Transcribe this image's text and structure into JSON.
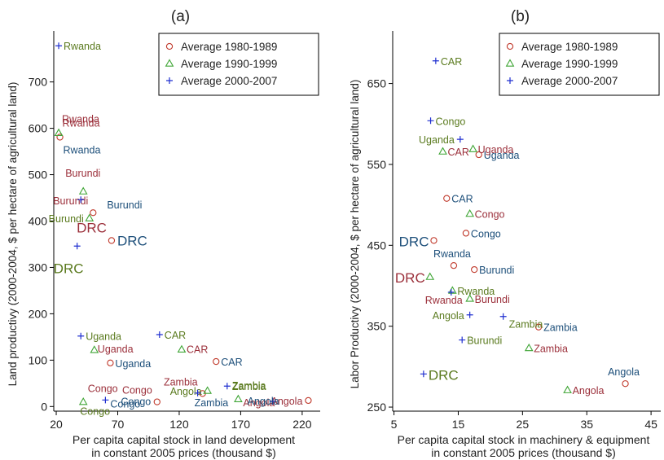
{
  "colors": {
    "s1980": "#c0392b",
    "s1990": "#3fa535",
    "s2000": "#1f2fd0",
    "lbl1980": "#9b2f3a",
    "lbl1990": "#5a7a1e",
    "lbl2000": "#1d4f7a",
    "axis": "#000000",
    "text": "#222222"
  },
  "chart_data": [
    {
      "type": "scatter",
      "title": "(a)",
      "xlabel": [
        "Per capita capital stock in land development",
        "in constant 2005 prices (thousand $)"
      ],
      "ylabel": "Land productivy (2000-2004, $ per hectare of agricultural land)",
      "xlim": [
        18,
        232
      ],
      "ylim": [
        -10,
        810
      ],
      "xticks": [
        20,
        70,
        120,
        170,
        220
      ],
      "yticks": [
        0,
        100,
        200,
        300,
        400,
        500,
        600,
        700
      ],
      "legend": {
        "position": "top-right",
        "entries": [
          {
            "series": "s1980",
            "label": "Average 1980-1989"
          },
          {
            "series": "s1990",
            "label": "Average 1990-1999"
          },
          {
            "series": "s2000",
            "label": "Average 2000-2007"
          }
        ]
      },
      "series": [
        {
          "name": "Average 1980-1989",
          "key": "s1980",
          "marker": "circle",
          "points": [
            {
              "x": 23,
              "y": 581,
              "label": "Rwanda",
              "anchor": "right-top"
            },
            {
              "x": 50,
              "y": 418,
              "label": "Burundi",
              "anchor": "above-left"
            },
            {
              "x": 65,
              "y": 358,
              "label": "DRC",
              "anchor": "above-left-big"
            },
            {
              "x": 64,
              "y": 94,
              "label": "Uganda",
              "anchor": "right"
            },
            {
              "x": 150,
              "y": 97,
              "label": "CAR",
              "anchor": "right"
            },
            {
              "x": 102,
              "y": 10,
              "label": "Congo",
              "anchor": "above-left"
            },
            {
              "x": 139,
              "y": 28,
              "label": "Zambia",
              "anchor": "above-left"
            },
            {
              "x": 225,
              "y": 13,
              "label": "Angola",
              "anchor": "left"
            }
          ]
        },
        {
          "name": "Average 1990-1999",
          "key": "s1990",
          "marker": "triangle",
          "points": [
            {
              "x": 22,
              "y": 590,
              "label": "",
              "anchor": "none"
            },
            {
              "x": 42,
              "y": 464,
              "label": "",
              "anchor": "none"
            },
            {
              "x": 47,
              "y": 406,
              "label": "Burundi",
              "anchor": "left"
            },
            {
              "x": 51,
              "y": 122,
              "label": "",
              "anchor": "none"
            },
            {
              "x": 122,
              "y": 123,
              "label": "",
              "anchor": "none"
            },
            {
              "x": 143,
              "y": 34,
              "label": "Angola",
              "anchor": "left"
            },
            {
              "x": 168,
              "y": 16,
              "label": "Angola",
              "anchor": "right-low"
            },
            {
              "x": 42,
              "y": 10,
              "label": "Congo",
              "anchor": "below-right"
            }
          ]
        },
        {
          "name": "Average 2000-2007",
          "key": "s2000",
          "marker": "plus",
          "points": [
            {
              "x": 22,
              "y": 778,
              "label": "Rwanda",
              "anchor": "right-g"
            },
            {
              "x": 40,
              "y": 446,
              "label": "",
              "anchor": "none"
            },
            {
              "x": 37,
              "y": 346,
              "label": "DRC",
              "anchor": "below-big"
            },
            {
              "x": 40,
              "y": 152,
              "label": "Uganda",
              "anchor": "right-g"
            },
            {
              "x": 104,
              "y": 155,
              "label": "CAR",
              "anchor": "right-g"
            },
            {
              "x": 60,
              "y": 14,
              "label": "Congo",
              "anchor": "right-low"
            },
            {
              "x": 135,
              "y": 29,
              "label": "Zambia",
              "anchor": "below-right"
            },
            {
              "x": 159,
              "y": 44,
              "label": "Zambia",
              "anchor": "right-g"
            },
            {
              "x": 196,
              "y": 11,
              "label": "",
              "anchor": "none"
            }
          ]
        }
      ],
      "extra_labels": [
        {
          "x": 23,
          "y": 581,
          "text": "Rwanda",
          "color": "lbl2000",
          "dx": 4,
          "dy": 20
        },
        {
          "x": 56,
          "y": 406,
          "text": "Burundi",
          "color": "lbl2000",
          "dx": 8,
          "dy": -12
        },
        {
          "x": 65,
          "y": 358,
          "text": "DRC",
          "color": "lbl2000",
          "dx": 7,
          "dy": 6,
          "big": true
        },
        {
          "x": 51,
          "y": 122,
          "text": "Uganda",
          "color": "lbl1980",
          "dx": 4,
          "dy": 3
        },
        {
          "x": 122,
          "y": 123,
          "text": "CAR",
          "color": "lbl1980",
          "dx": 6,
          "dy": 4
        },
        {
          "x": 22,
          "y": 590,
          "text": "Rwanda",
          "color": "lbl1980",
          "dx": 4,
          "dy": -13
        },
        {
          "x": 42,
          "y": 464,
          "text": "Burundi",
          "color": "lbl1980",
          "dx": -22,
          "dy": -18
        },
        {
          "x": 60,
          "y": 14,
          "text": "Congo",
          "color": "lbl2000",
          "dx": 19,
          "dy": 6
        },
        {
          "x": 102,
          "y": 10,
          "text": "Congo",
          "color": "lbl1980",
          "dx": -85,
          "dy": -12
        },
        {
          "x": 196,
          "y": 11,
          "text": "Angola",
          "color": "lbl2000",
          "dx": -31,
          "dy": 4
        },
        {
          "x": 159,
          "y": 44,
          "text": "Zambia",
          "color": "lbl1990",
          "dx": 6,
          "dy": 4
        }
      ]
    },
    {
      "type": "scatter",
      "title": "(b)",
      "xlabel": [
        "Per capita capital stock in machinery & equipment",
        "in constant 2005 prices (thousand $)"
      ],
      "ylabel": "Labor Productivy (2000-2004, $ per hectare of agricultural land)",
      "xlim": [
        4.8,
        46
      ],
      "ylim": [
        245,
        715
      ],
      "xticks": [
        5,
        15,
        25,
        35,
        45
      ],
      "yticks": [
        250,
        350,
        450,
        550,
        650
      ],
      "legend": {
        "position": "top-right",
        "entries": [
          {
            "series": "s1980",
            "label": "Average 1980-1989"
          },
          {
            "series": "s1990",
            "label": "Average 1990-1999"
          },
          {
            "series": "s2000",
            "label": "Average 2000-2007"
          }
        ]
      },
      "series": [
        {
          "name": "Average 1980-1989",
          "key": "s1980",
          "marker": "circle",
          "points": [
            {
              "x": 18.2,
              "y": 562,
              "label": "Uganda",
              "anchor": "right-b"
            },
            {
              "x": 13.2,
              "y": 508,
              "label": "CAR",
              "anchor": "right-b"
            },
            {
              "x": 16.2,
              "y": 465,
              "label": "Congo",
              "anchor": "right-b"
            },
            {
              "x": 11.2,
              "y": 456,
              "label": "DRC",
              "anchor": "left-big-b"
            },
            {
              "x": 14.3,
              "y": 425,
              "label": "Rwanda",
              "anchor": "above-b"
            },
            {
              "x": 17.5,
              "y": 420,
              "label": "Burundi",
              "anchor": "right-b"
            },
            {
              "x": 27.5,
              "y": 349,
              "label": "Zambia",
              "anchor": "right-b"
            },
            {
              "x": 41,
              "y": 279,
              "label": "Angola",
              "anchor": "above-b"
            }
          ]
        },
        {
          "name": "Average 1990-1999",
          "key": "s1990",
          "marker": "triangle",
          "points": [
            {
              "x": 17.3,
              "y": 569,
              "label": "Uganda",
              "anchor": "right-r"
            },
            {
              "x": 12.6,
              "y": 566,
              "label": "CAR",
              "anchor": "right-r"
            },
            {
              "x": 16.8,
              "y": 489,
              "label": "Congo",
              "anchor": "right-r"
            },
            {
              "x": 10.6,
              "y": 411,
              "label": "DRC",
              "anchor": "left-big-r"
            },
            {
              "x": 14.1,
              "y": 394,
              "label": "Rwanda",
              "anchor": "right-g"
            },
            {
              "x": 16.8,
              "y": 384,
              "label": "Burundi",
              "anchor": "right-r"
            },
            {
              "x": 26,
              "y": 323,
              "label": "Zambia",
              "anchor": "right-r"
            },
            {
              "x": 32,
              "y": 271,
              "label": "Angola",
              "anchor": "right-r"
            }
          ]
        },
        {
          "name": "Average 2000-2007",
          "key": "s2000",
          "marker": "plus",
          "points": [
            {
              "x": 11.5,
              "y": 678,
              "label": "CAR",
              "anchor": "right-g"
            },
            {
              "x": 10.7,
              "y": 604,
              "label": "Congo",
              "anchor": "right-g"
            },
            {
              "x": 15.3,
              "y": 581,
              "label": "Uganda",
              "anchor": "left-g"
            },
            {
              "x": 9.6,
              "y": 291,
              "label": "DRC",
              "anchor": "right-big-g"
            },
            {
              "x": 13.9,
              "y": 392,
              "label": "Rwanda",
              "anchor": "below-r"
            },
            {
              "x": 16.8,
              "y": 364,
              "label": "Angola",
              "anchor": "left-g"
            },
            {
              "x": 15.6,
              "y": 333,
              "label": "Burundi",
              "anchor": "right-g"
            },
            {
              "x": 22,
              "y": 362,
              "label": "Zambia",
              "anchor": "right-g-low"
            }
          ]
        }
      ],
      "extra_labels": []
    }
  ]
}
